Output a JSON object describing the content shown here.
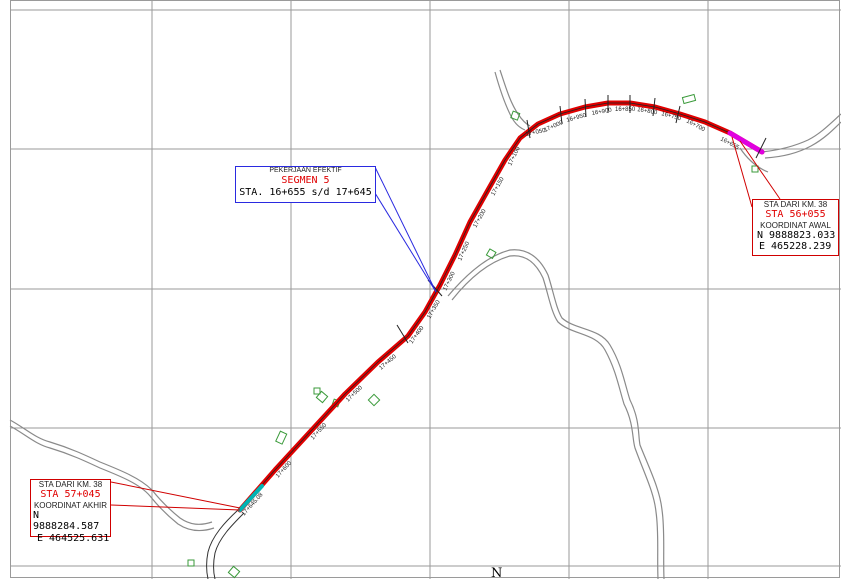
{
  "segment_callout": {
    "title": "PEKERJAAN EFEKTIF",
    "segment": "SEGMEN 5",
    "sta_range": "STA. 16+655 s/d 17+645"
  },
  "start_callout": {
    "line1": "STA DARI KM. 38",
    "sta": "STA 56+055",
    "coord_label": "KOORDINAT AWAL",
    "north": "N 9888823.033",
    "east": "E 465228.239"
  },
  "end_callout": {
    "line1": "STA DARI KM. 38",
    "sta": "STA 57+045",
    "coord_label": "KOORDINAT AKHIR",
    "north": "N 9888284.587",
    "east": "E 464525.631"
  },
  "north_arrow": "N",
  "station_labels": [
    "17+645.08",
    "17+600",
    "17+550",
    "17+500",
    "17+450",
    "17+400",
    "17+350",
    "17+300",
    "17+250",
    "17+200",
    "17+150",
    "17+100",
    "17+050",
    "17+000",
    "16+950",
    "16+900",
    "16+850",
    "16+800",
    "16+750",
    "16+700",
    "16+655"
  ],
  "colors": {
    "route": "#e00000",
    "route_start": "#e000e0",
    "route_end": "#00b4b4",
    "segment_callout_border": "#2a2ae0",
    "coordinate_callout_border": "#d00000",
    "grid": "#9a9a9a",
    "road": "#8a8a8a",
    "building": "#3a9a3a"
  }
}
